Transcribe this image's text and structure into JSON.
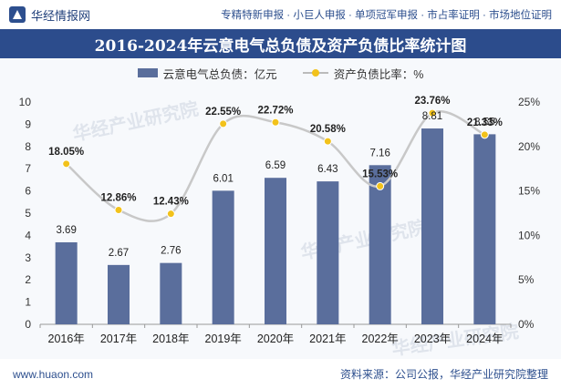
{
  "header": {
    "brand": "华经情报网",
    "links": "专精特新申报 · 小巨人申报 · 单项冠军申报 · 市占率证明 · 市场地位证明"
  },
  "title": "2016-2024年云意电气总负债及资产负债比率统计图",
  "footer": {
    "website": "www.huaon.com",
    "source": "资料来源：公司公报，华经产业研究院整理"
  },
  "watermark": "华经产业研究院",
  "colors": {
    "bar": "#5a6e9c",
    "line": "#c8c8c8",
    "marker": "#f2c21b",
    "title_bg": "#2c4c8c"
  },
  "chart_data": {
    "type": "bar",
    "categories": [
      "2016年",
      "2017年",
      "2018年",
      "2019年",
      "2020年",
      "2021年",
      "2022年",
      "2023年",
      "2024年"
    ],
    "series": [
      {
        "name": "云意电气总负债：亿元",
        "type": "bar",
        "axis": "left",
        "values": [
          3.69,
          2.67,
          2.76,
          6.01,
          6.59,
          6.43,
          7.16,
          8.81,
          8.55
        ],
        "labels": [
          "3.69",
          "2.67",
          "2.76",
          "6.01",
          "6.59",
          "6.43",
          "7.16",
          "8.81",
          "8.55"
        ]
      },
      {
        "name": "资产负债比率：%",
        "type": "line",
        "axis": "right",
        "values": [
          18.05,
          12.86,
          12.43,
          22.55,
          22.72,
          20.58,
          15.53,
          23.76,
          21.33
        ],
        "labels": [
          "18.05%",
          "12.86%",
          "12.43%",
          "22.55%",
          "22.72%",
          "20.58%",
          "15.53%",
          "23.76%",
          "21.33%"
        ]
      }
    ],
    "y_left": {
      "min": 0,
      "max": 10,
      "step": 1,
      "ticks": [
        "0",
        "1",
        "2",
        "3",
        "4",
        "5",
        "6",
        "7",
        "8",
        "9",
        "10"
      ]
    },
    "y_right": {
      "min": 0,
      "max": 25,
      "step": 5,
      "ticks": [
        "0%",
        "5%",
        "10%",
        "15%",
        "20%",
        "25%"
      ]
    },
    "grid": false,
    "legend_position": "top-center"
  }
}
